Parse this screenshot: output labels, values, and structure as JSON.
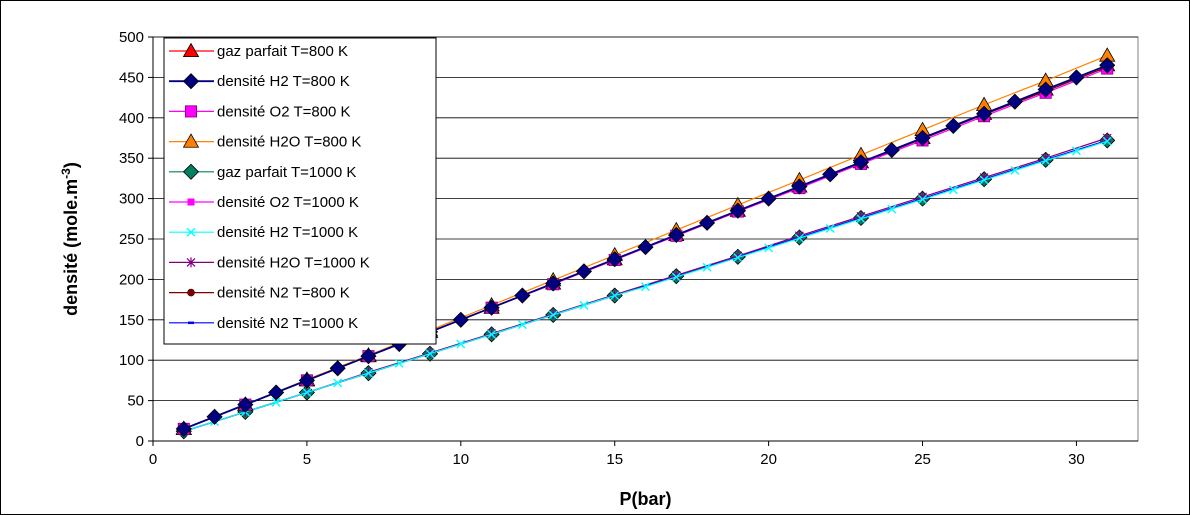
{
  "chart_data": {
    "type": "line",
    "xlabel": "P(bar)",
    "ylabel": "densité (mole.m",
    "ylabel_sup": "-3",
    "ylabel_end": ")",
    "xlim": [
      0,
      32
    ],
    "ylim": [
      0,
      500
    ],
    "xticks": [
      0,
      5,
      10,
      15,
      20,
      25,
      30
    ],
    "yticks": [
      0,
      50,
      100,
      150,
      200,
      250,
      300,
      350,
      400,
      450,
      500
    ],
    "grid": "horizontal",
    "legend_position": "top-left",
    "series": [
      {
        "name": "gaz parfait  T=800 K",
        "color": "#ff0000",
        "marker": "triangle",
        "x": [
          1,
          3,
          5,
          7,
          9,
          11,
          13,
          15,
          17,
          19,
          21,
          23,
          25,
          27,
          29,
          31
        ],
        "y": [
          15,
          45,
          75,
          105,
          135,
          165,
          195,
          225,
          255,
          285,
          315,
          345,
          375,
          405,
          435,
          465
        ]
      },
      {
        "name": "densité H2  T=800 K",
        "color": "#000080",
        "marker": "diamond",
        "x": [
          1,
          2,
          3,
          4,
          5,
          6,
          7,
          8,
          9,
          10,
          11,
          12,
          13,
          14,
          15,
          16,
          17,
          18,
          19,
          20,
          21,
          22,
          23,
          24,
          25,
          26,
          27,
          28,
          29,
          30,
          31
        ],
        "y": [
          15,
          30,
          45,
          60,
          75,
          90,
          105,
          120,
          135,
          150,
          165,
          180,
          195,
          210,
          225,
          240,
          255,
          270,
          285,
          300,
          315,
          330,
          345,
          360,
          375,
          390,
          405,
          420,
          435,
          450,
          465
        ]
      },
      {
        "name": "densité O2  T=800 K",
        "color": "#ff00ff",
        "marker": "square",
        "x": [
          1,
          3,
          5,
          7,
          9,
          11,
          13,
          15,
          17,
          19,
          21,
          23,
          25,
          27,
          29,
          31
        ],
        "y": [
          15,
          45,
          75,
          105,
          135,
          165,
          194,
          224,
          254,
          284,
          313,
          343,
          372,
          402,
          431,
          461
        ]
      },
      {
        "name": "densité H2O  T=800 K",
        "color": "#ff8000",
        "marker": "triangle",
        "x": [
          1,
          3,
          5,
          7,
          9,
          11,
          13,
          15,
          17,
          19,
          21,
          23,
          25,
          27,
          29,
          31
        ],
        "y": [
          15,
          45,
          76,
          106,
          137,
          168,
          199,
          230,
          261,
          292,
          323,
          354,
          385,
          416,
          446,
          477
        ]
      },
      {
        "name": "gaz parfait  T=1000 K",
        "color": "#008060",
        "marker": "diamond",
        "x": [
          1,
          3,
          5,
          7,
          9,
          11,
          13,
          15,
          17,
          19,
          21,
          23,
          25,
          27,
          29,
          31
        ],
        "y": [
          12,
          36,
          60,
          84,
          108,
          132,
          156,
          180,
          204,
          228,
          252,
          276,
          300,
          324,
          348,
          372
        ]
      },
      {
        "name": "densité O2  T=1000 K",
        "color": "#ff00ff",
        "marker": "small-square",
        "x": [
          1,
          3,
          5,
          7,
          9,
          11,
          13,
          15,
          17,
          19,
          21,
          23,
          25,
          27,
          29,
          31
        ],
        "y": [
          12,
          36,
          60,
          84,
          108,
          132,
          156,
          180,
          204,
          228,
          252,
          276,
          300,
          324,
          348,
          372
        ]
      },
      {
        "name": "densité H2  T=1000 K",
        "color": "#00ffff",
        "marker": "x",
        "x": [
          1,
          2,
          3,
          4,
          5,
          6,
          7,
          8,
          9,
          10,
          11,
          12,
          13,
          14,
          15,
          16,
          17,
          18,
          19,
          20,
          21,
          22,
          23,
          24,
          25,
          26,
          27,
          28,
          29,
          30,
          31
        ],
        "y": [
          12,
          24,
          36,
          48,
          60,
          72,
          84,
          96,
          108,
          120,
          132,
          144,
          156,
          168,
          180,
          191,
          203,
          215,
          227,
          239,
          251,
          263,
          275,
          287,
          299,
          311,
          323,
          335,
          347,
          359,
          371
        ]
      },
      {
        "name": "densité H2O  T=1000 K",
        "color": "#800080",
        "marker": "star",
        "x": [
          1,
          3,
          5,
          7,
          9,
          11,
          13,
          15,
          17,
          19,
          21,
          23,
          25,
          27,
          29,
          31
        ],
        "y": [
          12,
          36,
          60,
          85,
          109,
          133,
          157,
          181,
          205,
          229,
          254,
          278,
          302,
          326,
          350,
          375
        ]
      },
      {
        "name": "densité N2  T=800 K",
        "color": "#800000",
        "marker": "circle",
        "x": [
          1,
          3,
          5,
          7,
          9,
          11,
          13,
          15,
          17,
          19,
          21,
          23,
          25,
          27,
          29,
          31
        ],
        "y": [
          15,
          45,
          75,
          105,
          135,
          165,
          195,
          225,
          254,
          284,
          314,
          344,
          374,
          404,
          433,
          463
        ]
      },
      {
        "name": "densité N2  T=1000 K",
        "color": "#0000ff",
        "marker": "dash",
        "x": [
          1,
          3,
          5,
          7,
          9,
          11,
          13,
          15,
          17,
          19,
          21,
          23,
          25,
          27,
          29,
          31
        ],
        "y": [
          12,
          36,
          60,
          84,
          108,
          132,
          156,
          180,
          204,
          228,
          252,
          276,
          300,
          324,
          348,
          372
        ]
      }
    ]
  }
}
